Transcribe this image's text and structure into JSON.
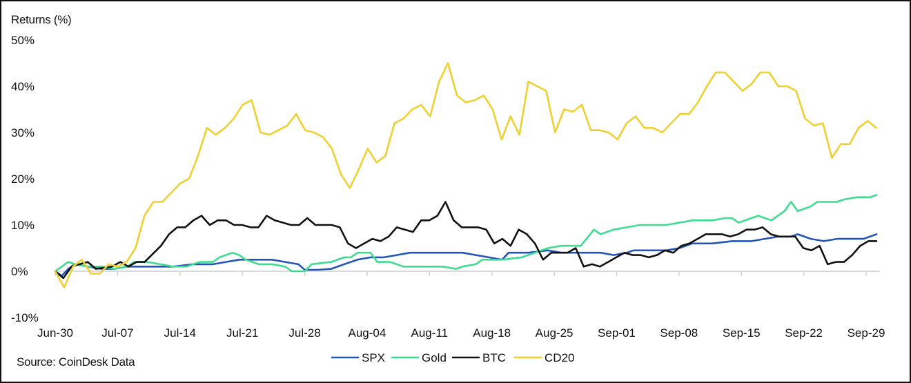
{
  "chart_data": {
    "type": "line",
    "ylabel": "Returns (%)",
    "source": "Source: CoinDesk Data",
    "ylim": [
      -10,
      50
    ],
    "yticks": [
      50,
      40,
      30,
      20,
      10,
      0,
      -10
    ],
    "ytick_labels": [
      "50%",
      "40%",
      "30%",
      "20%",
      "10%",
      "0%",
      "-10%"
    ],
    "xtick_labels": [
      "Jun-30",
      "Jul-07",
      "Jul-14",
      "Jul-21",
      "Jul-28",
      "Aug-04",
      "Aug-11",
      "Aug-18",
      "Aug-25",
      "Sep-01",
      "Sep-08",
      "Sep-15",
      "Sep-22",
      "Sep-29"
    ],
    "x_unit": "days from Jun-30",
    "legend_position": "bottom-center",
    "grid": false,
    "series": [
      {
        "name": "SPX",
        "color": "#2355b8",
        "points": [
          [
            0,
            0
          ],
          [
            1,
            -1
          ],
          [
            2,
            0.5
          ],
          [
            3,
            1.5
          ],
          [
            5,
            1
          ],
          [
            7,
            0.5
          ],
          [
            9,
            0.5
          ],
          [
            11,
            1
          ],
          [
            13,
            1
          ],
          [
            15,
            1
          ],
          [
            18,
            1
          ],
          [
            21,
            1.5
          ],
          [
            24,
            1.5
          ],
          [
            26,
            2
          ],
          [
            28,
            2.5
          ],
          [
            31,
            2.5
          ],
          [
            33,
            2.5
          ],
          [
            35,
            2
          ],
          [
            37,
            1.5
          ],
          [
            38,
            0.3
          ],
          [
            40,
            0.3
          ],
          [
            42,
            0.5
          ],
          [
            44,
            1.5
          ],
          [
            46,
            2.5
          ],
          [
            48,
            3
          ],
          [
            50,
            3
          ],
          [
            52,
            3.5
          ],
          [
            54,
            4
          ],
          [
            56,
            4
          ],
          [
            59,
            4
          ],
          [
            62,
            4
          ],
          [
            64,
            3.5
          ],
          [
            66,
            3
          ],
          [
            68,
            2.5
          ],
          [
            69,
            4
          ],
          [
            72,
            4
          ],
          [
            75,
            4.5
          ],
          [
            77,
            4
          ],
          [
            80,
            4
          ],
          [
            83,
            4
          ],
          [
            85,
            3.5
          ],
          [
            87,
            4
          ],
          [
            88,
            4.5
          ],
          [
            91,
            4.5
          ],
          [
            93,
            4.5
          ],
          [
            95,
            5
          ],
          [
            97,
            6
          ],
          [
            100,
            6
          ],
          [
            103,
            6.5
          ],
          [
            106,
            6.5
          ],
          [
            108,
            7
          ],
          [
            110,
            7.5
          ],
          [
            112,
            7.5
          ],
          [
            113,
            8
          ],
          [
            115,
            7
          ],
          [
            117,
            6.5
          ],
          [
            119,
            7
          ],
          [
            121,
            7
          ],
          [
            123,
            7
          ],
          [
            124,
            7.5
          ],
          [
            125,
            8
          ]
        ]
      },
      {
        "name": "Gold",
        "color": "#3ddc8f",
        "points": [
          [
            0,
            0
          ],
          [
            1,
            1
          ],
          [
            2,
            2
          ],
          [
            3,
            1.5
          ],
          [
            5,
            1
          ],
          [
            7,
            1
          ],
          [
            9,
            0.5
          ],
          [
            11,
            1
          ],
          [
            12,
            2
          ],
          [
            14,
            2
          ],
          [
            16,
            1.5
          ],
          [
            18,
            1
          ],
          [
            20,
            1
          ],
          [
            22,
            2
          ],
          [
            24,
            2
          ],
          [
            25,
            3
          ],
          [
            27,
            4
          ],
          [
            28,
            3.5
          ],
          [
            29,
            2.5
          ],
          [
            31,
            1.5
          ],
          [
            33,
            1.5
          ],
          [
            35,
            1
          ],
          [
            36,
            0
          ],
          [
            38,
            0
          ],
          [
            39,
            1.5
          ],
          [
            42,
            2
          ],
          [
            44,
            3
          ],
          [
            45,
            3
          ],
          [
            46,
            4
          ],
          [
            48,
            4
          ],
          [
            49,
            2
          ],
          [
            51,
            2
          ],
          [
            53,
            1
          ],
          [
            56,
            1
          ],
          [
            59,
            1
          ],
          [
            61,
            0.5
          ],
          [
            62,
            1
          ],
          [
            64,
            1.5
          ],
          [
            65,
            2.5
          ],
          [
            68,
            2.5
          ],
          [
            71,
            3
          ],
          [
            73,
            4
          ],
          [
            75,
            5
          ],
          [
            77,
            5.5
          ],
          [
            80,
            5.5
          ],
          [
            82,
            9
          ],
          [
            83,
            8
          ],
          [
            85,
            9
          ],
          [
            87,
            9.5
          ],
          [
            89,
            10
          ],
          [
            91,
            10
          ],
          [
            93,
            10
          ],
          [
            95,
            10.5
          ],
          [
            97,
            11
          ],
          [
            100,
            11
          ],
          [
            102,
            11.5
          ],
          [
            103,
            11.5
          ],
          [
            104,
            10.5
          ],
          [
            105,
            11
          ],
          [
            107,
            12
          ],
          [
            109,
            11
          ],
          [
            110,
            12
          ],
          [
            111,
            13
          ],
          [
            112,
            15
          ],
          [
            113,
            13
          ],
          [
            115,
            14
          ],
          [
            116,
            15
          ],
          [
            118,
            15
          ],
          [
            119,
            15
          ],
          [
            120,
            15.5
          ],
          [
            122,
            16
          ],
          [
            124,
            16
          ],
          [
            125,
            16.5
          ]
        ]
      },
      {
        "name": "BTC",
        "color": "#111111",
        "points": [
          [
            0,
            0
          ],
          [
            1,
            -1.5
          ],
          [
            2,
            1
          ],
          [
            3,
            1.5
          ],
          [
            4,
            2
          ],
          [
            5,
            0.5
          ],
          [
            7,
            1
          ],
          [
            8,
            2
          ],
          [
            9,
            1
          ],
          [
            10,
            2
          ],
          [
            11,
            2
          ],
          [
            13,
            5.5
          ],
          [
            14,
            8
          ],
          [
            15,
            9.5
          ],
          [
            16,
            9.5
          ],
          [
            17,
            11
          ],
          [
            18,
            12
          ],
          [
            19,
            10
          ],
          [
            20,
            11
          ],
          [
            21,
            11
          ],
          [
            22,
            10
          ],
          [
            23,
            10
          ],
          [
            24,
            9.5
          ],
          [
            25,
            9.5
          ],
          [
            26,
            12
          ],
          [
            27,
            11
          ],
          [
            28,
            10.5
          ],
          [
            29,
            10
          ],
          [
            30,
            10
          ],
          [
            31,
            11.5
          ],
          [
            32,
            10
          ],
          [
            33,
            10
          ],
          [
            34,
            10
          ],
          [
            35,
            9.5
          ],
          [
            36,
            6
          ],
          [
            37,
            5
          ],
          [
            38,
            6
          ],
          [
            39,
            7
          ],
          [
            40,
            6.5
          ],
          [
            41,
            7.5
          ],
          [
            42,
            9.5
          ],
          [
            43,
            9
          ],
          [
            44,
            8.5
          ],
          [
            45,
            11
          ],
          [
            46,
            11
          ],
          [
            47,
            12
          ],
          [
            48,
            15
          ],
          [
            49,
            11
          ],
          [
            50,
            9.5
          ],
          [
            51,
            9.5
          ],
          [
            52,
            9.5
          ],
          [
            53,
            9
          ],
          [
            54,
            6
          ],
          [
            55,
            7
          ],
          [
            56,
            5.5
          ],
          [
            57,
            9
          ],
          [
            58,
            8
          ],
          [
            59,
            6
          ],
          [
            60,
            2.5
          ],
          [
            61,
            4
          ],
          [
            62,
            4
          ],
          [
            63,
            4
          ],
          [
            64,
            5
          ],
          [
            65,
            1
          ],
          [
            66,
            1.5
          ],
          [
            67,
            1
          ],
          [
            68,
            2
          ],
          [
            69,
            3
          ],
          [
            70,
            4
          ],
          [
            71,
            3.5
          ],
          [
            72,
            3.5
          ],
          [
            73,
            3
          ],
          [
            74,
            3.5
          ],
          [
            75,
            4.5
          ],
          [
            76,
            4
          ],
          [
            77,
            5.5
          ],
          [
            78,
            6
          ],
          [
            79,
            7
          ],
          [
            80,
            8
          ],
          [
            81,
            8
          ],
          [
            82,
            8
          ],
          [
            83,
            7.5
          ],
          [
            84,
            8
          ],
          [
            85,
            9
          ],
          [
            86,
            9
          ],
          [
            87,
            9.5
          ],
          [
            88,
            8
          ],
          [
            89,
            7.5
          ],
          [
            90,
            7.5
          ],
          [
            91,
            7.5
          ],
          [
            92,
            5
          ],
          [
            93,
            4.5
          ],
          [
            94,
            5.5
          ],
          [
            95,
            1.5
          ],
          [
            96,
            2
          ],
          [
            97,
            2
          ],
          [
            98,
            3.5
          ],
          [
            99,
            5.5
          ],
          [
            100,
            6.5
          ],
          [
            101,
            6.5
          ]
        ]
      },
      {
        "name": "CD20",
        "color": "#f0cf30",
        "points": [
          [
            0,
            0
          ],
          [
            1,
            -3.5
          ],
          [
            2,
            1
          ],
          [
            3,
            2.5
          ],
          [
            4,
            -0.5
          ],
          [
            5,
            -0.5
          ],
          [
            6,
            1.5
          ],
          [
            7,
            1
          ],
          [
            8,
            2
          ],
          [
            9,
            5
          ],
          [
            10,
            12
          ],
          [
            11,
            15
          ],
          [
            12,
            15
          ],
          [
            13,
            17
          ],
          [
            14,
            19
          ],
          [
            15,
            20
          ],
          [
            16,
            25
          ],
          [
            17,
            31
          ],
          [
            18,
            29.5
          ],
          [
            19,
            31
          ],
          [
            20,
            33
          ],
          [
            21,
            36
          ],
          [
            22,
            37
          ],
          [
            23,
            30
          ],
          [
            24,
            29.5
          ],
          [
            25,
            30.5
          ],
          [
            26,
            31.5
          ],
          [
            27,
            34
          ],
          [
            28,
            30.5
          ],
          [
            29,
            30
          ],
          [
            30,
            29
          ],
          [
            31,
            26.5
          ],
          [
            32,
            21
          ],
          [
            33,
            18
          ],
          [
            34,
            22
          ],
          [
            35,
            26.5
          ],
          [
            36,
            23.5
          ],
          [
            37,
            25
          ],
          [
            38,
            32
          ],
          [
            39,
            33
          ],
          [
            40,
            35
          ],
          [
            41,
            36
          ],
          [
            42,
            33.5
          ],
          [
            43,
            41
          ],
          [
            44,
            45
          ],
          [
            45,
            38
          ],
          [
            46,
            36.5
          ],
          [
            47,
            37
          ],
          [
            48,
            38
          ],
          [
            49,
            35
          ],
          [
            50,
            28.5
          ],
          [
            51,
            33.5
          ],
          [
            52,
            29.5
          ],
          [
            53,
            41
          ],
          [
            54,
            40
          ],
          [
            55,
            39
          ],
          [
            56,
            30
          ],
          [
            57,
            35
          ],
          [
            58,
            34.5
          ],
          [
            59,
            36
          ],
          [
            60,
            30.5
          ],
          [
            61,
            30.5
          ],
          [
            62,
            30
          ],
          [
            63,
            28.5
          ],
          [
            64,
            32
          ],
          [
            65,
            33.5
          ],
          [
            66,
            31
          ],
          [
            67,
            31
          ],
          [
            68,
            30
          ],
          [
            69,
            32
          ],
          [
            70,
            34
          ],
          [
            71,
            34
          ],
          [
            72,
            36.5
          ],
          [
            73,
            40
          ],
          [
            74,
            43
          ],
          [
            75,
            43
          ],
          [
            76,
            41
          ],
          [
            77,
            39
          ],
          [
            78,
            40.5
          ],
          [
            79,
            43
          ],
          [
            80,
            43
          ],
          [
            81,
            40
          ],
          [
            82,
            40
          ],
          [
            83,
            39
          ],
          [
            84,
            33
          ],
          [
            85,
            31.5
          ],
          [
            86,
            32
          ],
          [
            87,
            24.5
          ],
          [
            88,
            27.5
          ],
          [
            89,
            27.5
          ],
          [
            90,
            31
          ],
          [
            91,
            32.5
          ],
          [
            92,
            31
          ]
        ]
      }
    ],
    "series_x_scale_note": "x in days from Jun-30"
  }
}
